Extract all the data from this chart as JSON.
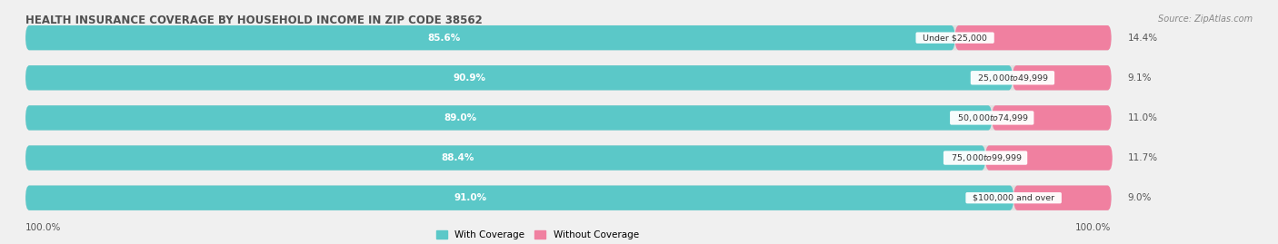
{
  "title": "HEALTH INSURANCE COVERAGE BY HOUSEHOLD INCOME IN ZIP CODE 38562",
  "source": "Source: ZipAtlas.com",
  "categories": [
    "Under $25,000",
    "$25,000 to $49,999",
    "$50,000 to $74,999",
    "$75,000 to $99,999",
    "$100,000 and over"
  ],
  "with_coverage": [
    85.6,
    90.9,
    89.0,
    88.4,
    91.0
  ],
  "without_coverage": [
    14.4,
    9.1,
    11.0,
    11.7,
    9.0
  ],
  "color_with": "#5BC8C8",
  "color_without": "#F080A0",
  "bg_color": "#F0F0F0",
  "bar_bg_color": "#E0E0E0",
  "title_color": "#505050",
  "source_color": "#888888",
  "value_color": "#555555",
  "legend_with": "With Coverage",
  "legend_without": "Without Coverage",
  "bottom_left_label": "100.0%",
  "bottom_right_label": "100.0%"
}
